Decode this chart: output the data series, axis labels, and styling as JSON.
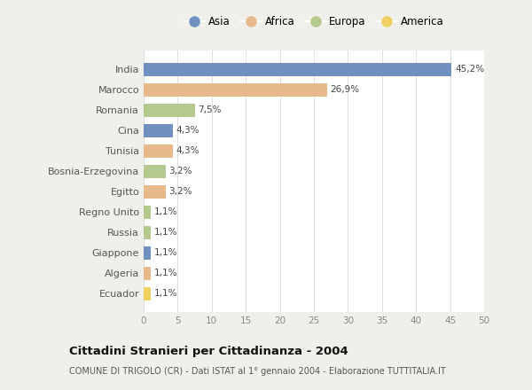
{
  "countries": [
    "India",
    "Marocco",
    "Romania",
    "Cina",
    "Tunisia",
    "Bosnia-Erzegovina",
    "Egitto",
    "Regno Unito",
    "Russia",
    "Giappone",
    "Algeria",
    "Ecuador"
  ],
  "values": [
    45.2,
    26.9,
    7.5,
    4.3,
    4.3,
    3.2,
    3.2,
    1.1,
    1.1,
    1.1,
    1.1,
    1.1
  ],
  "labels": [
    "45,2%",
    "26,9%",
    "7,5%",
    "4,3%",
    "4,3%",
    "3,2%",
    "3,2%",
    "1,1%",
    "1,1%",
    "1,1%",
    "1,1%",
    "1,1%"
  ],
  "continents": [
    "Asia",
    "Africa",
    "Europa",
    "Asia",
    "Africa",
    "Europa",
    "Africa",
    "Europa",
    "Europa",
    "Asia",
    "Africa",
    "America"
  ],
  "colors": {
    "Asia": "#7090c0",
    "Africa": "#e8b98a",
    "Europa": "#b5c98e",
    "America": "#f0d060"
  },
  "legend_order": [
    "Asia",
    "Africa",
    "Europa",
    "America"
  ],
  "xlim": [
    0,
    50
  ],
  "xticks": [
    0,
    5,
    10,
    15,
    20,
    25,
    30,
    35,
    40,
    45,
    50
  ],
  "title": "Cittadini Stranieri per Cittadinanza - 2004",
  "subtitle": "COMUNE DI TRIGOLO (CR) - Dati ISTAT al 1° gennaio 2004 - Elaborazione TUTTITALIA.IT",
  "bg_color": "#f0f0eb",
  "bar_bg_color": "#ffffff"
}
